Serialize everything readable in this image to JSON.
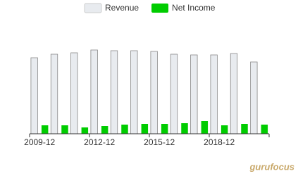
{
  "chart_data": {
    "type": "bar",
    "categories": [
      "2009-12",
      null,
      null,
      "2012-12",
      null,
      null,
      "2015-12",
      null,
      null,
      "2018-12",
      null,
      null
    ],
    "series": [
      {
        "name": "Revenue",
        "color": "#e8ebef",
        "values": [
          108,
          113,
          115,
          119,
          118,
          118,
          117,
          113,
          112,
          112,
          114,
          102
        ]
      },
      {
        "name": "Net Income",
        "color": "#00cc00",
        "values": [
          12,
          12,
          9,
          11,
          13,
          14,
          14,
          15,
          18,
          12,
          14,
          13
        ]
      }
    ],
    "ylim": [
      0,
      130
    ],
    "legend": "top",
    "watermark": "gurufocus"
  }
}
